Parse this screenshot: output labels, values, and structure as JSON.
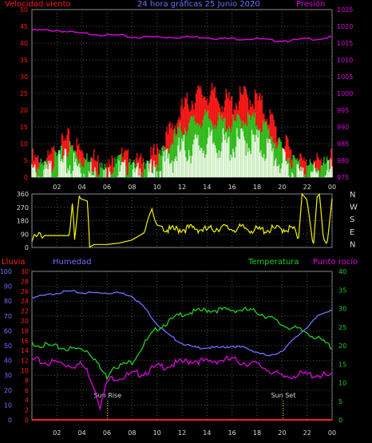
{
  "colors": {
    "background": "#000000",
    "frame": "#8a8a8a",
    "grid": "#555555",
    "tick_labels": "#d8d8d8",
    "wind_speed": "#ff1a1a",
    "wind_avg": "#22cc22",
    "wind_fill": "#e8ffe8",
    "pressure": "#e000e0",
    "direction": "#f2f200",
    "rain": "#ff2020",
    "humidity": "#7070ff",
    "temperature": "#20d020",
    "dew_point": "#e000e0",
    "sun_markers": "#f2f200"
  },
  "chart_data": [
    {
      "type": "area",
      "title": "24 hora gráficas  25 Junio 2020",
      "left_axis_label": "Velocidad viento",
      "right_axis_label": "Presión",
      "grid": true,
      "x_ticks": [
        "02",
        "04",
        "06",
        "08",
        "10",
        "12",
        "14",
        "16",
        "18",
        "20",
        "22",
        "00"
      ],
      "y_left": {
        "ticks": [
          0,
          5,
          10,
          15,
          20,
          25,
          30,
          35,
          40,
          45,
          50
        ],
        "range": [
          0,
          50
        ]
      },
      "y_right": {
        "ticks": [
          975,
          980,
          985,
          990,
          995,
          1000,
          1005,
          1010,
          1015,
          1020,
          1025
        ],
        "range": [
          975,
          1025
        ]
      },
      "x_hours": [
        0,
        1,
        2,
        3,
        4,
        5,
        6,
        7,
        8,
        9,
        10,
        11,
        12,
        13,
        14,
        15,
        16,
        17,
        18,
        19,
        20,
        21,
        22,
        23,
        24
      ],
      "series": [
        {
          "name": "",
          "color_key": "wind_speed",
          "axis": "left",
          "values": [
            7,
            5,
            10,
            13,
            9,
            7,
            4,
            8,
            6,
            5,
            9,
            15,
            22,
            26,
            27,
            25,
            24,
            26,
            25,
            20,
            12,
            8,
            5,
            6,
            7
          ]
        },
        {
          "name": "",
          "color_key": "wind_avg",
          "axis": "left",
          "values": [
            5,
            4,
            7,
            10,
            7,
            5,
            3,
            6,
            4,
            3,
            6,
            11,
            16,
            18,
            19,
            18,
            17,
            19,
            18,
            15,
            9,
            6,
            4,
            5,
            5
          ]
        },
        {
          "name": "",
          "color_key": "wind_fill",
          "axis": "left",
          "values": [
            4,
            3,
            6,
            7,
            5,
            3,
            2,
            4,
            3,
            2,
            5,
            8,
            11,
            12,
            13,
            13,
            12,
            14,
            13,
            11,
            7,
            4,
            3,
            3,
            4
          ]
        },
        {
          "name": "Presión",
          "color_key": "pressure",
          "axis": "right",
          "values": [
            1019,
            1019,
            1019,
            1018.5,
            1018,
            1018,
            1017.5,
            1017.5,
            1017,
            1017,
            1017,
            1017,
            1017,
            1017,
            1017,
            1016.5,
            1016.5,
            1016.5,
            1016.5,
            1016,
            1016,
            1016,
            1016.5,
            1016.5,
            1017
          ]
        }
      ]
    },
    {
      "type": "line",
      "title": "",
      "grid": true,
      "y_left": {
        "ticks": [
          0,
          90,
          180,
          270,
          360
        ],
        "range": [
          0,
          360
        ]
      },
      "compass_labels": [
        "N",
        "W",
        "S",
        "E",
        "N"
      ],
      "x_hours": [
        0,
        0.2,
        0.4,
        0.6,
        0.8,
        1,
        3,
        3.3,
        3.35,
        3.8,
        3.85,
        4.5,
        4.55,
        5,
        6,
        7,
        8,
        9,
        9.3,
        9.6,
        9.8,
        10,
        10.5,
        11,
        12,
        13,
        14,
        15,
        16,
        17,
        18,
        19,
        20,
        21,
        21.3,
        21.6,
        22,
        22.5,
        22.8,
        23,
        23.3,
        23.6,
        24
      ],
      "values": [
        40,
        90,
        70,
        110,
        60,
        80,
        80,
        360,
        0,
        360,
        330,
        310,
        0,
        20,
        20,
        30,
        50,
        100,
        200,
        260,
        190,
        150,
        140,
        130,
        140,
        145,
        130,
        150,
        140,
        145,
        130,
        135,
        140,
        140,
        40,
        360,
        320,
        0,
        340,
        360,
        60,
        20,
        330
      ],
      "name": ""
    },
    {
      "type": "line",
      "title": "",
      "grid": true,
      "left_axis_labels": [
        "Lluvia",
        "Humedad"
      ],
      "right_axis_labels": [
        "Temperatura",
        "Punto rocío"
      ],
      "y_humidity": {
        "ticks": [
          0,
          10,
          20,
          30,
          40,
          50,
          60,
          70,
          80,
          90,
          100
        ],
        "range": [
          0,
          100
        ]
      },
      "y_dew": {
        "ticks": [
          0,
          2,
          4,
          6,
          8,
          10,
          12,
          14,
          16,
          18,
          20,
          22,
          24,
          26,
          28,
          30
        ],
        "range": [
          0,
          30
        ]
      },
      "y_temp": {
        "ticks": [
          0,
          5,
          10,
          15,
          20,
          25,
          30,
          35,
          40
        ],
        "range": [
          0,
          40
        ]
      },
      "x_ticks": [
        "02",
        "04",
        "06",
        "08",
        "10",
        "12",
        "14",
        "16",
        "18",
        "20",
        "22",
        "00"
      ],
      "annotations": [
        {
          "text": "Sun Rise",
          "hour": 6.05
        },
        {
          "text": "Sun Set",
          "hour": 20.1
        }
      ],
      "x_hours": [
        0,
        1,
        2,
        3,
        4,
        4.5,
        5,
        5.5,
        6,
        6.5,
        7,
        8,
        9,
        10,
        11,
        12,
        13,
        14,
        15,
        16,
        17,
        18,
        19,
        20,
        21,
        22,
        23,
        24
      ],
      "series": [
        {
          "name": "Lluvia",
          "color_key": "rain",
          "axis": "dew",
          "values": [
            0,
            0,
            0,
            0,
            0,
            0,
            0,
            0,
            0,
            0,
            0,
            0,
            0,
            0,
            0,
            0,
            0,
            0,
            0,
            0,
            0,
            0,
            0,
            0,
            0,
            0,
            0,
            0
          ]
        },
        {
          "name": "Humedad",
          "color_key": "humidity",
          "axis": "humidity",
          "values": [
            83,
            84,
            86,
            87,
            86,
            86,
            86,
            86,
            86,
            86,
            86,
            84,
            76,
            65,
            57,
            52,
            49,
            49,
            49,
            50,
            49,
            46,
            43,
            47,
            55,
            63,
            71,
            75
          ]
        },
        {
          "name": "Temperatura",
          "color_key": "temperature",
          "axis": "temp",
          "values": [
            21,
            20.5,
            20,
            19.5,
            19.5,
            19,
            17,
            14,
            12,
            15,
            15,
            16,
            21,
            25,
            27,
            29,
            29.5,
            30,
            30,
            30,
            30,
            29.5,
            28,
            26,
            25,
            24,
            22,
            20
          ]
        },
        {
          "name": "Punto rocío",
          "color_key": "dew_point",
          "axis": "dew",
          "values": [
            12.5,
            12,
            12,
            11.5,
            11.5,
            10,
            7,
            3,
            8,
            9,
            9,
            9.5,
            10,
            11,
            11.5,
            12,
            12.5,
            12,
            12.5,
            12.5,
            12,
            11.5,
            10.5,
            9,
            9.5,
            9.5,
            9.5,
            9
          ]
        }
      ]
    }
  ]
}
